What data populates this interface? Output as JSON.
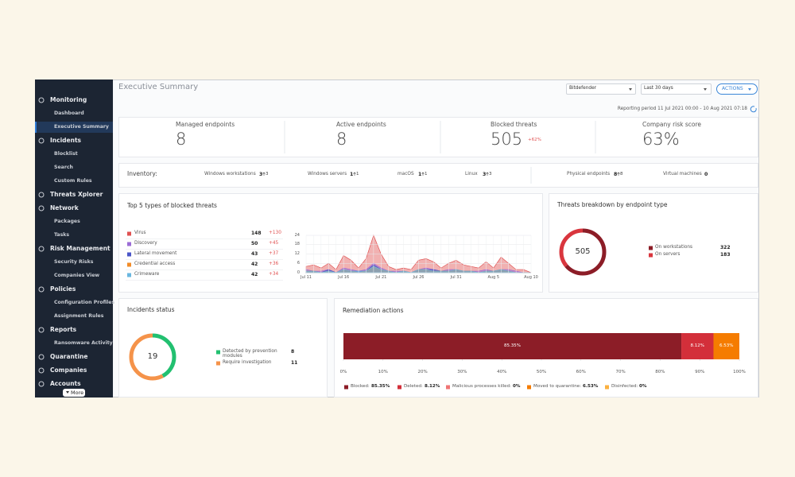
{
  "sidebar": {
    "sections": [
      {
        "label": "Monitoring",
        "items": [
          "Dashboard",
          "Executive Summary"
        ]
      },
      {
        "label": "Incidents",
        "items": [
          "Blocklist",
          "Search",
          "Custom Rules"
        ]
      },
      {
        "label": "Threats Xplorer",
        "items": []
      },
      {
        "label": "Network",
        "items": [
          "Packages",
          "Tasks"
        ]
      },
      {
        "label": "Risk Management",
        "items": [
          "Security Risks",
          "Companies View"
        ]
      },
      {
        "label": "Policies",
        "items": [
          "Configuration Profiles",
          "Assignment Rules"
        ]
      },
      {
        "label": "Reports",
        "items": [
          "Ransomware Activity"
        ]
      },
      {
        "label": "Quarantine",
        "items": []
      },
      {
        "label": "Companies",
        "items": []
      },
      {
        "label": "Accounts",
        "items": []
      }
    ],
    "active": "Executive Summary",
    "more": "More"
  },
  "header": {
    "title": "Executive Summary",
    "company": "Bitdefender",
    "period": "Last 30 days",
    "actions": "ACTIONS",
    "reporting": "Reporting period 11 Jul 2021 00:00 - 10 Aug 2021 07:18"
  },
  "kpis": [
    {
      "label": "Managed endpoints",
      "value": 8
    },
    {
      "label": "Active endpoints",
      "value": 8
    },
    {
      "label": "Blocked threats",
      "value": 505,
      "change": "+62%"
    },
    {
      "label": "Company risk score",
      "value": "63%"
    }
  ],
  "inventory": {
    "label": "Inventory:",
    "items": [
      {
        "label": "Windows workstations",
        "value": 3,
        "change": 3
      },
      {
        "label": "Windows servers",
        "value": 1,
        "change": 1
      },
      {
        "label": "macOS",
        "value": 1,
        "change": 1
      },
      {
        "label": "Linux",
        "value": 3,
        "change": 3
      },
      {
        "label": "Physical endpoints",
        "value": 8,
        "change": 8
      },
      {
        "label": "Virtual machines",
        "value": 0
      }
    ]
  },
  "top_threats": {
    "title": "Top 5 types of blocked threats",
    "chart": {
      "type": "area",
      "categories": [
        "Jul 11",
        null,
        null,
        null,
        null,
        "Jul 16",
        null,
        null,
        null,
        null,
        "Jul 21",
        null,
        null,
        null,
        null,
        "Jul 26",
        null,
        null,
        null,
        null,
        "Jul 31",
        null,
        null,
        null,
        null,
        "Aug 5",
        null,
        null,
        null,
        null,
        "Aug 10"
      ],
      "ylim": [
        0,
        24
      ],
      "yticks": [
        0,
        6,
        12,
        18,
        24
      ],
      "series": [
        {
          "name": "Virus",
          "color": "#e05252",
          "count": 148,
          "change": "+130",
          "values": [
            4,
            5,
            3,
            6,
            2,
            11,
            8,
            3,
            9,
            24,
            12,
            4,
            2,
            3,
            2,
            8,
            9,
            7,
            3,
            6,
            8,
            5,
            4,
            3,
            7,
            3,
            10,
            6,
            2,
            2,
            0
          ]
        },
        {
          "name": "Discovery",
          "color": "#9b6cd6",
          "count": 50,
          "change": "+45",
          "values": [
            2,
            1,
            1,
            2,
            0,
            3,
            2,
            1,
            2,
            6,
            3,
            1,
            1,
            1,
            0,
            2,
            3,
            2,
            1,
            2,
            2,
            1,
            1,
            1,
            2,
            1,
            2,
            2,
            1,
            0,
            0
          ]
        },
        {
          "name": "Lateral movement",
          "color": "#4a55c8",
          "count": 43,
          "change": "+37",
          "values": [
            1,
            1,
            0,
            2,
            0,
            2,
            1,
            1,
            1,
            5,
            2,
            1,
            0,
            1,
            0,
            2,
            2,
            2,
            1,
            1,
            2,
            1,
            1,
            0,
            1,
            1,
            2,
            1,
            0,
            0,
            0
          ]
        },
        {
          "name": "Credential access",
          "color": "#f28c28",
          "count": 42,
          "change": "+36",
          "values": [
            1,
            1,
            0,
            1,
            0,
            2,
            1,
            0,
            1,
            4,
            2,
            1,
            0,
            1,
            0,
            2,
            2,
            1,
            1,
            1,
            2,
            1,
            1,
            0,
            1,
            1,
            2,
            1,
            0,
            0,
            0
          ]
        },
        {
          "name": "Crimeware",
          "color": "#6ab7e0",
          "count": 42,
          "change": "+34",
          "values": [
            1,
            1,
            0,
            1,
            0,
            2,
            1,
            1,
            1,
            4,
            2,
            1,
            0,
            1,
            0,
            2,
            2,
            1,
            1,
            1,
            2,
            1,
            1,
            0,
            1,
            1,
            2,
            1,
            0,
            0,
            0
          ]
        }
      ]
    }
  },
  "breakdown": {
    "title": "Threats breakdown by endpoint type",
    "total": 505,
    "type": "donut",
    "series": [
      {
        "name": "On workstations",
        "color": "#8c1d27",
        "value": 322
      },
      {
        "name": "On servers",
        "color": "#d9363e",
        "value": 183
      }
    ]
  },
  "incidents": {
    "title": "Incidents status",
    "total": 19,
    "type": "donut",
    "series": [
      {
        "name": "Detected by prevention modules",
        "color": "#22c070",
        "value": 8
      },
      {
        "name": "Require investigation",
        "color": "#f5934a",
        "value": 11
      }
    ]
  },
  "remediation": {
    "title": "Remediation actions",
    "type": "stacked_bar",
    "xlim": [
      0,
      100
    ],
    "xticks": [
      {
        "value": 0,
        "label": "0%"
      },
      {
        "value": 10,
        "label": "10%"
      },
      {
        "value": 20,
        "label": "20%"
      },
      {
        "value": 30,
        "label": "30%"
      },
      {
        "value": 40,
        "label": "40%"
      },
      {
        "value": 50,
        "label": "50%"
      },
      {
        "value": 60,
        "label": "60%"
      },
      {
        "value": 70,
        "label": "70%"
      },
      {
        "value": 80,
        "label": "80%"
      },
      {
        "value": 90,
        "label": "90%"
      },
      {
        "value": 100,
        "label": "100%"
      }
    ],
    "series": [
      {
        "name": "Blocked:",
        "color": "#8c1d27",
        "value": 85.35,
        "value_label": "85.35%"
      },
      {
        "name": "Deleted:",
        "color": "#d32f3a",
        "value": 8.12,
        "value_label": "8.12%"
      },
      {
        "name": "Malicious processes killed:",
        "color": "#f07575",
        "value": 0,
        "value_label": "0%"
      },
      {
        "name": "Moved to quarantine:",
        "color": "#f57c00",
        "value": 6.53,
        "value_label": "6.53%"
      },
      {
        "name": "Disinfected:",
        "color": "#fbb040",
        "value": 0,
        "value_label": "0%"
      }
    ]
  }
}
